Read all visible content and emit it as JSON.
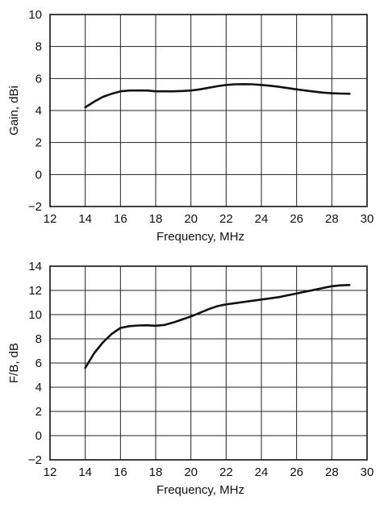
{
  "chart_data": [
    {
      "type": "line",
      "title": "",
      "xlabel": "Frequency, MHz",
      "ylabel": "Gain, dBi",
      "xlim": [
        12,
        30
      ],
      "ylim": [
        -2,
        10
      ],
      "xticks": [
        "12",
        "14",
        "16",
        "18",
        "20",
        "22",
        "24",
        "26",
        "28",
        "30"
      ],
      "yticks": [
        "−2",
        "0",
        "2",
        "4",
        "6",
        "8",
        "10"
      ],
      "grid": true,
      "series": [
        {
          "x": [
            14,
            14.5,
            15,
            15.5,
            16,
            16.5,
            17,
            17.5,
            18,
            18.5,
            19,
            19.5,
            20,
            20.5,
            21,
            21.5,
            22,
            22.5,
            23,
            23.5,
            24,
            24.5,
            25,
            25.5,
            26,
            26.5,
            27,
            27.5,
            28,
            28.5,
            29
          ],
          "y": [
            4.2,
            4.55,
            4.85,
            5.05,
            5.2,
            5.25,
            5.25,
            5.25,
            5.2,
            5.2,
            5.2,
            5.22,
            5.25,
            5.32,
            5.42,
            5.52,
            5.6,
            5.64,
            5.65,
            5.64,
            5.6,
            5.55,
            5.48,
            5.4,
            5.32,
            5.25,
            5.18,
            5.12,
            5.08,
            5.06,
            5.05
          ]
        }
      ]
    },
    {
      "type": "line",
      "title": "",
      "xlabel": "Frequency, MHz",
      "ylabel": "F/B, dB",
      "xlim": [
        12,
        30
      ],
      "ylim": [
        -2,
        14
      ],
      "xticks": [
        "12",
        "14",
        "16",
        "18",
        "20",
        "22",
        "24",
        "26",
        "28",
        "30"
      ],
      "yticks": [
        "−2",
        "0",
        "2",
        "4",
        "6",
        "8",
        "10",
        "12",
        "14"
      ],
      "grid": true,
      "series": [
        {
          "x": [
            14,
            14.5,
            15,
            15.5,
            16,
            16.5,
            17,
            17.5,
            18,
            18.5,
            19,
            19.5,
            20,
            20.5,
            21,
            21.5,
            22,
            22.5,
            23,
            23.5,
            24,
            24.5,
            25,
            25.5,
            26,
            26.5,
            27,
            27.5,
            28,
            28.5,
            29
          ],
          "y": [
            5.6,
            6.8,
            7.7,
            8.4,
            8.9,
            9.05,
            9.1,
            9.12,
            9.08,
            9.15,
            9.35,
            9.6,
            9.85,
            10.15,
            10.45,
            10.7,
            10.85,
            10.95,
            11.05,
            11.15,
            11.25,
            11.35,
            11.45,
            11.6,
            11.75,
            11.9,
            12.05,
            12.2,
            12.35,
            12.42,
            12.45
          ]
        }
      ]
    }
  ]
}
